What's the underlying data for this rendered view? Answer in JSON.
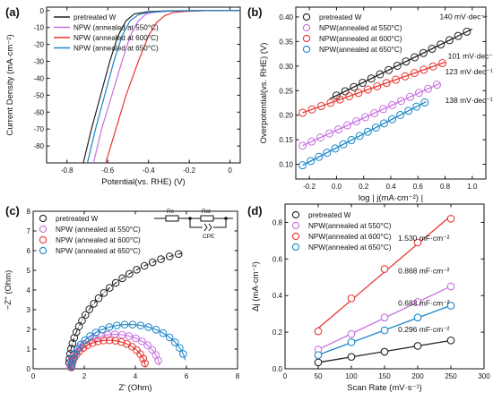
{
  "colors": {
    "pretreated": "#222222",
    "c550": "#c86fe0",
    "c600": "#e8352f",
    "c650": "#1a86c8"
  },
  "circuit": {
    "re": "Re",
    "rct": "Rct",
    "cpe": "CPE"
  },
  "chart_data": [
    {
      "panel": "(a)",
      "type": "line",
      "xlabel": "Potential(vs. RHE) (V)",
      "ylabel": "Current Density (mA·cm⁻²)",
      "xlim": [
        -0.9,
        0.05
      ],
      "ylim": [
        -90,
        2
      ],
      "xticks": [
        -0.8,
        -0.6,
        -0.4,
        -0.2,
        0.0
      ],
      "xtick_labels": [
        "-0.8",
        "-0.6",
        "-0.4",
        "-0.2",
        "0"
      ],
      "yticks": [
        0,
        -10,
        -20,
        -30,
        -40,
        -50,
        -60,
        -70,
        -80
      ],
      "legend": "top-left",
      "series": [
        {
          "name": "pretreated W",
          "color_key": "pretreated",
          "points": [
            [
              -0.72,
              -90
            ],
            [
              -0.68,
              -70
            ],
            [
              -0.635,
              -50
            ],
            [
              -0.59,
              -30
            ],
            [
              -0.55,
              -15
            ],
            [
              -0.51,
              -6
            ],
            [
              -0.47,
              -2
            ],
            [
              -0.4,
              -0.6
            ],
            [
              -0.3,
              -0.2
            ],
            [
              -0.1,
              0
            ],
            [
              0.05,
              0
            ]
          ]
        },
        {
          "name": "NPW (annealed at 550°C)",
          "color_key": "c550",
          "points": [
            [
              -0.67,
              -90
            ],
            [
              -0.63,
              -70
            ],
            [
              -0.58,
              -50
            ],
            [
              -0.53,
              -30
            ],
            [
              -0.49,
              -15
            ],
            [
              -0.45,
              -6
            ],
            [
              -0.41,
              -2
            ],
            [
              -0.36,
              -0.8
            ],
            [
              -0.3,
              -0.4
            ],
            [
              -0.1,
              0
            ],
            [
              0.05,
              0
            ]
          ]
        },
        {
          "name": "NPW (annealed at 600°C)",
          "color_key": "c600",
          "points": [
            [
              -0.61,
              -90
            ],
            [
              -0.56,
              -70
            ],
            [
              -0.51,
              -50
            ],
            [
              -0.45,
              -30
            ],
            [
              -0.4,
              -15
            ],
            [
              -0.36,
              -7
            ],
            [
              -0.32,
              -3
            ],
            [
              -0.28,
              -1.2
            ],
            [
              -0.22,
              -0.5
            ],
            [
              -0.1,
              0
            ],
            [
              0.05,
              0
            ]
          ]
        },
        {
          "name": "NPW (annealed at 650°C)",
          "color_key": "c650",
          "points": [
            [
              -0.7,
              -90
            ],
            [
              -0.66,
              -70
            ],
            [
              -0.615,
              -50
            ],
            [
              -0.57,
              -30
            ],
            [
              -0.53,
              -15
            ],
            [
              -0.49,
              -6
            ],
            [
              -0.45,
              -2.5
            ],
            [
              -0.4,
              -1
            ],
            [
              -0.3,
              -0.3
            ],
            [
              -0.1,
              0
            ],
            [
              0.05,
              0
            ]
          ]
        }
      ]
    },
    {
      "panel": "(b)",
      "type": "scatter",
      "xlabel": "log | j(mA·cm⁻²) |",
      "ylabel": "Overpotential(vs. RHE) (V)",
      "xlim": [
        -0.3,
        1.1
      ],
      "ylim": [
        0.07,
        0.42
      ],
      "xticks": [
        -0.2,
        0.0,
        0.2,
        0.4,
        0.6,
        0.8,
        1.0
      ],
      "xtick_labels": [
        "-0.2",
        "0.0",
        "0.2",
        "0.4",
        "0.6",
        "0.8",
        "1.0"
      ],
      "yticks": [
        0.1,
        0.15,
        0.2,
        0.25,
        0.3,
        0.35,
        0.4
      ],
      "ytick_labels": [
        "0.10",
        "0.15",
        "0.20",
        "0.25",
        "0.30",
        "0.35",
        "0.40"
      ],
      "legend": "top-left",
      "series": [
        {
          "name": "pretreated W",
          "color_key": "pretreated",
          "x_start": 0.0,
          "x_end": 0.96,
          "y_start": 0.24,
          "y_end": 0.37,
          "fit_x": [
            -0.05,
            1.0
          ],
          "tafel_label": "140 mV·dec⁻¹",
          "label_x": 0.76,
          "label_y": 0.395
        },
        {
          "name": "NPW(annealed at 550°C)",
          "color_key": "c550",
          "x_start": -0.25,
          "x_end": 0.74,
          "y_start": 0.138,
          "y_end": 0.262,
          "fit_x": [
            -0.25,
            0.76
          ],
          "tafel_label": "123 mV·dec⁻¹",
          "label_x": 0.8,
          "label_y": 0.283
        },
        {
          "name": "NPW(annealed at 600°C)",
          "color_key": "c600",
          "x_start": -0.25,
          "x_end": 0.78,
          "y_start": 0.205,
          "y_end": 0.306,
          "fit_x": [
            -0.25,
            0.8
          ],
          "tafel_label": "101 mV·dec⁻¹",
          "label_x": 0.82,
          "label_y": 0.315
        },
        {
          "name": "NPW(annealed at 650°C)",
          "color_key": "c650",
          "x_start": -0.25,
          "x_end": 0.65,
          "y_start": 0.098,
          "y_end": 0.226,
          "fit_x": [
            -0.25,
            0.66
          ],
          "tafel_label": "138 mV·dec⁻¹",
          "label_x": 0.8,
          "label_y": 0.225
        }
      ]
    },
    {
      "panel": "(c)",
      "type": "scatter",
      "xlabel": "Z' (Ohm)",
      "ylabel": "−Z'' (Ohm)",
      "xlim": [
        0,
        8
      ],
      "ylim": [
        0,
        8
      ],
      "xticks": [
        0,
        2,
        4,
        6,
        8
      ],
      "xtick_labels": [
        "0",
        "2",
        "4",
        "6",
        "8"
      ],
      "yticks": [
        0,
        1,
        2,
        3,
        4,
        5,
        6,
        7,
        8
      ],
      "ytick_labels": [
        "0",
        "1",
        "2",
        "3",
        "4",
        "5",
        "6",
        "7",
        "8"
      ],
      "legend": "top-left",
      "series": [
        {
          "name": "pretreated W",
          "color_key": "pretreated",
          "r0": 1.4,
          "rct": 12.2,
          "theta_max": 1.27,
          "fit_theta_max": 1.3,
          "n": 24
        },
        {
          "name": "NPW (annealed at 550°C)",
          "color_key": "c550",
          "r0": 1.45,
          "rct": 3.5,
          "theta_max": 2.9,
          "fit_theta_max": 3.05,
          "n": 20
        },
        {
          "name": "NPW (annealed at 600°C)",
          "color_key": "c600",
          "r0": 1.5,
          "rct": 2.9,
          "theta_max": 2.95,
          "fit_theta_max": 3.1,
          "n": 20
        },
        {
          "name": "NPW (annealed at 650°C)",
          "color_key": "c650",
          "r0": 1.5,
          "rct": 4.5,
          "theta_max": 2.8,
          "fit_theta_max": 2.95,
          "n": 22
        }
      ]
    },
    {
      "panel": "(d)",
      "type": "scatter",
      "xlabel": "Scan Rate (mV·s⁻¹)",
      "ylabel": "Δj (mA·cm⁻²)",
      "xlim": [
        0,
        300
      ],
      "ylim": [
        0,
        0.9
      ],
      "xticks": [
        0,
        50,
        100,
        150,
        200,
        250,
        300
      ],
      "xtick_labels": [
        "0",
        "50",
        "100",
        "150",
        "200",
        "250",
        "300"
      ],
      "yticks": [
        0.0,
        0.2,
        0.4,
        0.6,
        0.8
      ],
      "ytick_labels": [
        "0.0",
        "0.2",
        "0.4",
        "0.6",
        "0.8"
      ],
      "legend": "top-left",
      "x": [
        50,
        100,
        150,
        200,
        250
      ],
      "series": [
        {
          "name": "pretreated W",
          "color_key": "pretreated",
          "values": [
            0.035,
            0.065,
            0.093,
            0.125,
            0.155
          ],
          "cdl_label": "0.296 mF·cm⁻²",
          "label_x": 248,
          "label_y": 0.2
        },
        {
          "name": "NPW(annealed at 550°C)",
          "color_key": "c550",
          "values": [
            0.105,
            0.19,
            0.28,
            0.365,
            0.45
          ],
          "cdl_label": "0.868 mF·cm⁻²",
          "label_x": 248,
          "label_y": 0.52
        },
        {
          "name": "NPW(annealed at 600°C)",
          "color_key": "c600",
          "values": [
            0.205,
            0.385,
            0.545,
            0.69,
            0.82
          ],
          "cdl_label": "1.530 mF·cm⁻²",
          "label_x": 248,
          "label_y": 0.7
        },
        {
          "name": "NPW(annealed at 650°C)",
          "color_key": "c650",
          "values": [
            0.075,
            0.145,
            0.21,
            0.28,
            0.345
          ],
          "cdl_label": "0.683 mF·cm⁻²",
          "label_x": 248,
          "label_y": 0.345
        }
      ]
    }
  ]
}
